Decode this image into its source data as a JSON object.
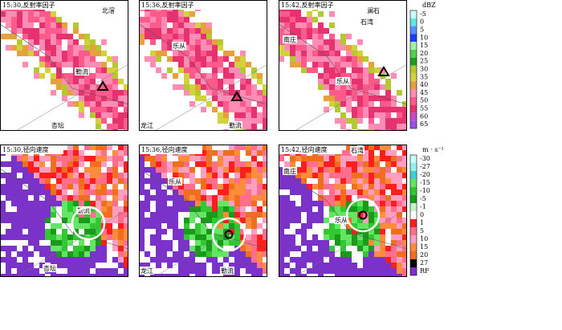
{
  "panels": [
    {
      "title": "15:30,反射率因子",
      "places": [
        "北滘",
        "勒流",
        "杏坛"
      ]
    },
    {
      "title": "15:36,反射率因子",
      "places": [
        "乐从",
        "龙江",
        "勒流"
      ]
    },
    {
      "title": "15:42,反射率因子",
      "places": [
        "澜石",
        "石湾",
        "南庄",
        "乐从"
      ]
    },
    {
      "title": "15:30,径向速度",
      "places": [
        "勒流",
        "杏坛"
      ]
    },
    {
      "title": "15:36,径向速度",
      "places": [
        "乐从",
        "龙江",
        "勒流"
      ]
    },
    {
      "title": "15:42,径向速度",
      "places": [
        "石湾",
        "南庄",
        "乐从"
      ]
    }
  ],
  "reflectivity_bar": {
    "unit": "dBZ",
    "labels": [
      -5,
      0,
      5,
      10,
      15,
      20,
      25,
      30,
      35,
      40,
      45,
      50,
      55,
      60,
      65
    ],
    "colors": [
      "#c8ffff",
      "#64e6e6",
      "#5a8cff",
      "#1e3cff",
      "#a0f0a0",
      "#50d050",
      "#1e9e1e",
      "#b4c832",
      "#d2d23c",
      "#e6a03c",
      "#ff8cb4",
      "#ff5a8c",
      "#e6326e",
      "#c846c8",
      "#9a50e0"
    ]
  },
  "velocity_bar": {
    "unit": "m · s⁻¹",
    "labels": [
      -30,
      -27,
      -20,
      -15,
      -10,
      -5,
      -1,
      0,
      1,
      5,
      10,
      15,
      20,
      27,
      "RF"
    ],
    "colors": [
      "#c8ffff",
      "#96f0f0",
      "#3cd2d2",
      "#64e664",
      "#32c832",
      "#1a9a1a",
      "#c8f0c8",
      "#ffffff",
      "#ff1e1e",
      "#ff6e8c",
      "#ff9ec0",
      "#ff8c3c",
      "#f06e1e",
      "#000000",
      "#7a32c8"
    ]
  }
}
